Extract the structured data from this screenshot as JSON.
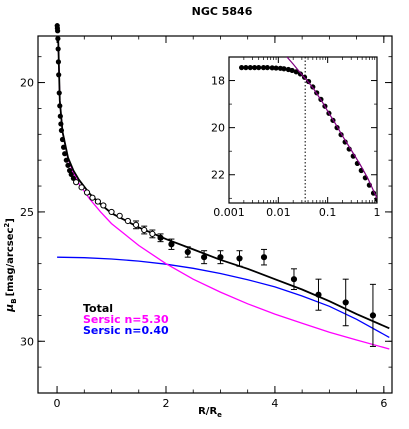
{
  "chart_data": {
    "type": "line",
    "title": "NGC 5846",
    "xlabel": "R/R",
    "xlabel_sub": "e",
    "ylabel": "μ",
    "ylabel_sub": "B",
    "ylabel_unit": "[mag/arcsec",
    "ylabel_unit_sup": "2",
    "ylabel_unit_close": "]",
    "xlim": [
      -0.35,
      6.15
    ],
    "ylim": [
      32,
      18.2
    ],
    "x_ticks": [
      0,
      2,
      4,
      6
    ],
    "y_ticks": [
      20,
      25,
      30
    ],
    "legend": [
      {
        "name": "Total",
        "color": "#000000"
      },
      {
        "name": "Sersic n=5.30",
        "color": "#ff00ff"
      },
      {
        "name": "Sersic n=0.40",
        "color": "#0000ff"
      }
    ],
    "series": [
      {
        "name": "Total",
        "color": "#000000",
        "x": [
          0.02,
          0.05,
          0.1,
          0.2,
          0.3,
          0.4,
          0.6,
          0.8,
          1.0,
          1.5,
          2.0,
          2.5,
          3.0,
          3.5,
          4.0,
          4.5,
          5.0,
          5.5,
          6.1
        ],
        "y": [
          18.3,
          20.7,
          21.9,
          22.9,
          23.4,
          23.75,
          24.3,
          24.7,
          25.05,
          25.6,
          26.05,
          26.45,
          26.85,
          27.2,
          27.6,
          28.0,
          28.45,
          28.95,
          29.5
        ]
      },
      {
        "name": "Sersic n=5.30",
        "color": "#ff00ff",
        "x": [
          0.02,
          0.05,
          0.1,
          0.2,
          0.3,
          0.4,
          0.6,
          0.8,
          1.0,
          1.5,
          2.0,
          2.5,
          3.0,
          3.5,
          4.0,
          4.5,
          5.0,
          5.5,
          6.1
        ],
        "y": [
          18.3,
          20.7,
          21.9,
          22.95,
          23.5,
          23.9,
          24.5,
          25.0,
          25.45,
          26.3,
          27.0,
          27.6,
          28.1,
          28.55,
          28.95,
          29.3,
          29.65,
          29.95,
          30.3
        ]
      },
      {
        "name": "Sersic n=0.40",
        "color": "#0000ff",
        "x": [
          0.0,
          0.5,
          1.0,
          1.5,
          2.0,
          2.5,
          3.0,
          3.5,
          4.0,
          4.5,
          5.0,
          5.5,
          6.1
        ],
        "y": [
          26.75,
          26.77,
          26.82,
          26.9,
          27.02,
          27.18,
          27.38,
          27.62,
          27.9,
          28.25,
          28.65,
          29.15,
          29.85
        ]
      }
    ],
    "data_points": {
      "dense_x": [
        0.003,
        0.006,
        0.01,
        0.015,
        0.02,
        0.025,
        0.03,
        0.04,
        0.05,
        0.06,
        0.07,
        0.08,
        0.1,
        0.12,
        0.14,
        0.17,
        0.2,
        0.23,
        0.26,
        0.3
      ],
      "dense_y": [
        17.8,
        17.9,
        18.0,
        18.3,
        18.7,
        19.2,
        19.7,
        20.4,
        20.9,
        21.3,
        21.6,
        21.85,
        22.2,
        22.5,
        22.75,
        23.0,
        23.2,
        23.4,
        23.55,
        23.7
      ],
      "x": [
        0.35,
        0.45,
        0.55,
        0.65,
        0.75,
        0.85,
        1.0,
        1.15,
        1.3,
        1.45,
        1.6,
        1.75,
        1.9,
        2.1,
        2.4,
        2.7,
        3.0,
        3.35,
        3.8,
        4.35,
        4.8,
        5.3,
        5.8
      ],
      "y": [
        23.85,
        24.05,
        24.25,
        24.45,
        24.6,
        24.75,
        25.0,
        25.15,
        25.35,
        25.5,
        25.7,
        25.85,
        26.0,
        26.25,
        26.55,
        26.75,
        26.75,
        26.8,
        26.75,
        27.6,
        28.2,
        28.5,
        29.0
      ],
      "yerr": [
        0,
        0,
        0,
        0,
        0,
        0,
        0,
        0,
        0,
        0.15,
        0.15,
        0.15,
        0.15,
        0.2,
        0.2,
        0.25,
        0.25,
        0.3,
        0.3,
        0.4,
        0.6,
        0.9,
        1.2
      ]
    },
    "inset": {
      "xscale": "log",
      "xlim": [
        0.001,
        1.0
      ],
      "ylim": [
        23.2,
        17.0
      ],
      "x_ticks": [
        0.001,
        0.01,
        0.1,
        1
      ],
      "x_tick_labels": [
        "0.001",
        "0.01",
        "0.1",
        "1"
      ],
      "y_ticks": [
        18,
        20,
        22
      ],
      "vline_x": 0.035,
      "points": {
        "x": [
          0.0018,
          0.0022,
          0.0027,
          0.0033,
          0.004,
          0.005,
          0.006,
          0.0075,
          0.009,
          0.011,
          0.013,
          0.016,
          0.019,
          0.023,
          0.028,
          0.034,
          0.041,
          0.05,
          0.06,
          0.073,
          0.088,
          0.106,
          0.128,
          0.155,
          0.187,
          0.226,
          0.273,
          0.33,
          0.4,
          0.48,
          0.58,
          0.7,
          0.85,
          1.0
        ],
        "y": [
          17.45,
          17.45,
          17.45,
          17.45,
          17.45,
          17.45,
          17.45,
          17.46,
          17.47,
          17.48,
          17.5,
          17.53,
          17.57,
          17.63,
          17.72,
          17.86,
          18.04,
          18.27,
          18.52,
          18.8,
          19.09,
          19.39,
          19.69,
          20.0,
          20.3,
          20.61,
          20.91,
          21.21,
          21.52,
          21.82,
          22.13,
          22.44,
          22.78,
          23.05
        ]
      },
      "total_curve": {
        "x": [
          0.015,
          0.02,
          0.025,
          0.03,
          0.04,
          0.05,
          0.06,
          0.08,
          0.1,
          0.15,
          0.2,
          0.3,
          0.45,
          0.65,
          1.0
        ],
        "y": [
          17.0,
          17.3,
          17.55,
          17.75,
          18.05,
          18.3,
          18.55,
          18.95,
          19.3,
          19.9,
          20.35,
          20.95,
          21.55,
          22.15,
          23.0
        ]
      }
    }
  }
}
